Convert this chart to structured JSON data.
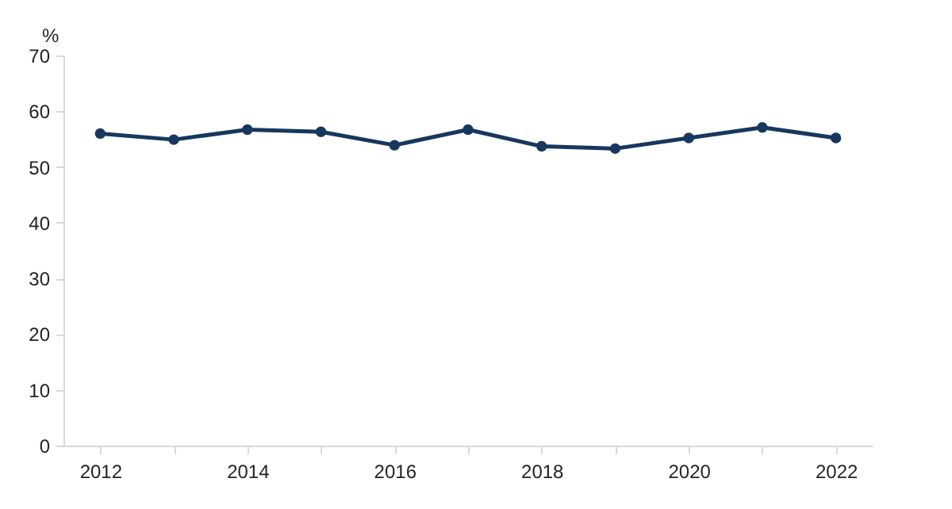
{
  "chart_data": {
    "type": "line",
    "ylabel": "%",
    "x": [
      2012,
      2013,
      2014,
      2015,
      2016,
      2017,
      2018,
      2019,
      2020,
      2021,
      2022
    ],
    "series": [
      {
        "color": "#17375e",
        "values": [
          56.0,
          54.9,
          56.7,
          56.3,
          53.9,
          56.7,
          53.7,
          53.3,
          55.2,
          57.1,
          55.2
        ]
      }
    ],
    "xlim": [
      2011.5,
      2022.5
    ],
    "xticks": [
      2012,
      {
        "value": 2013,
        "label": null
      },
      2014,
      {
        "value": 2015,
        "label": null
      },
      2016,
      {
        "value": 2017,
        "label": null
      },
      2018,
      {
        "value": 2019,
        "label": null
      },
      2020,
      {
        "value": 2021,
        "label": null
      },
      2022
    ],
    "ylim": [
      0,
      70
    ],
    "yticks": [
      0,
      10,
      20,
      30,
      40,
      50,
      60,
      70
    ],
    "grid": false,
    "marker": "circle",
    "line_style": "solid"
  }
}
